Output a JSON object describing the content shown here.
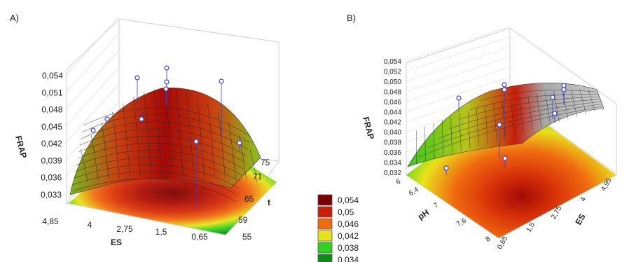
{
  "chart_data": [
    {
      "panel": "A)",
      "type": "surface3d",
      "zlabel": "FRAP",
      "xlabel": "ES",
      "ylabel": "t",
      "z_ticks": [
        "0,033",
        "0,036",
        "0,039",
        "0,042",
        "0,045",
        "0,048",
        "0,051",
        "0,054"
      ],
      "zlim": [
        0.033,
        0.054
      ],
      "x_ticks": [
        "4,85",
        "4",
        "2,75",
        "1,5",
        "0,65"
      ],
      "xlim": [
        0.65,
        4.85
      ],
      "y_ticks": [
        "55",
        "59",
        "65",
        "71",
        "75"
      ],
      "ylim": [
        55,
        75
      ],
      "observed_points": 10
    },
    {
      "panel": "B)",
      "type": "surface3d",
      "zlabel": "FRAP",
      "xlabel": "pH",
      "ylabel": "ES",
      "z_ticks": [
        "0,032",
        "0,034",
        "0,036",
        "0,038",
        "0,040",
        "0,042",
        "0,044",
        "0,046",
        "0,048",
        "0,050",
        "0,052",
        "0,054"
      ],
      "zlim": [
        0.032,
        0.054
      ],
      "x_ticks": [
        "6",
        "6,4",
        "7",
        "7,6",
        "8"
      ],
      "xlim": [
        6,
        8
      ],
      "y_ticks": [
        "0,65",
        "1,5",
        "2,75",
        "4",
        "4,95"
      ],
      "ylim": [
        0.65,
        4.95
      ],
      "observed_points": 10
    }
  ],
  "legend": {
    "entries": [
      {
        "label": "0,054",
        "color": "#7a0000"
      },
      {
        "label": "0,05",
        "color": "#c81e0a"
      },
      {
        "label": "0,046",
        "color": "#f06a10"
      },
      {
        "label": "0,042",
        "color": "#e8e21a"
      },
      {
        "label": "0,038",
        "color": "#2fd21e"
      },
      {
        "label": "0,034",
        "color": "#0f8a1a"
      }
    ]
  }
}
